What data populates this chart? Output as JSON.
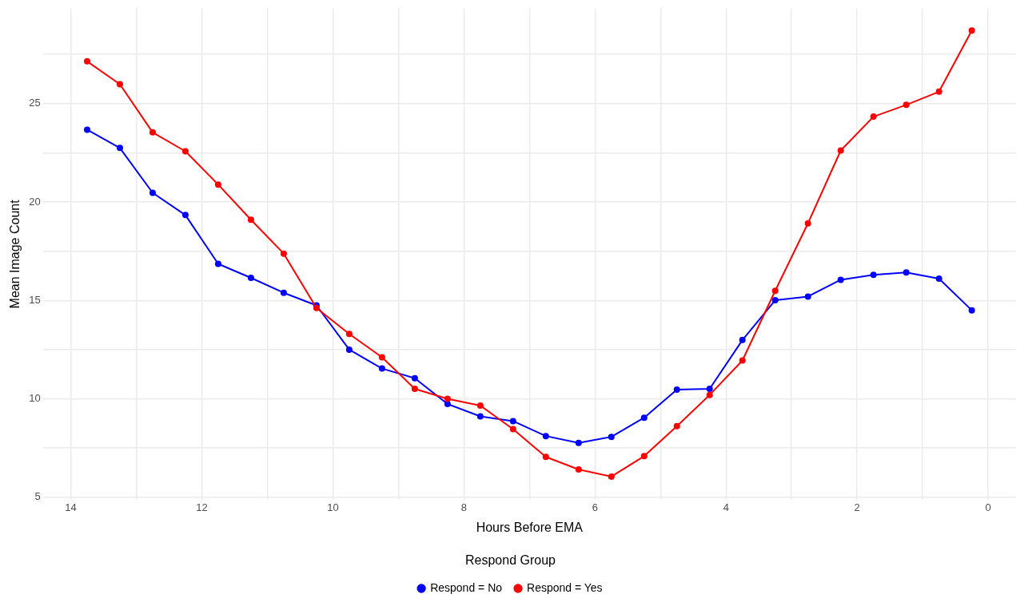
{
  "chart_data": {
    "type": "line",
    "xlabel": "Hours Before EMA",
    "ylabel": "Mean Image Count",
    "legend_title": "Respond Group",
    "x": [
      13.75,
      13.25,
      12.75,
      12.25,
      11.75,
      11.25,
      10.75,
      10.25,
      9.75,
      9.25,
      8.75,
      8.25,
      7.75,
      7.25,
      6.75,
      6.25,
      5.75,
      5.25,
      4.75,
      4.25,
      3.75,
      3.25,
      2.75,
      2.25,
      1.75,
      1.25,
      0.75,
      0.25
    ],
    "series": [
      {
        "name": "Respond = No",
        "color": "#0000ff",
        "values": [
          23.68,
          22.75,
          20.47,
          19.34,
          16.86,
          16.15,
          15.39,
          14.75,
          12.5,
          11.54,
          11.05,
          9.74,
          9.11,
          8.87,
          8.11,
          7.76,
          8.07,
          9.04,
          10.47,
          10.51,
          12.99,
          15.01,
          15.2,
          16.05,
          16.3,
          16.42,
          16.11,
          14.5
        ]
      },
      {
        "name": "Respond = Yes",
        "color": "#ff0000",
        "values": [
          27.15,
          25.99,
          23.54,
          22.58,
          20.89,
          19.1,
          17.38,
          14.62,
          13.3,
          12.11,
          10.51,
          10.0,
          9.66,
          8.46,
          7.05,
          6.41,
          6.05,
          7.09,
          8.61,
          10.2,
          11.95,
          15.49,
          18.92,
          22.62,
          24.34,
          24.94,
          25.61,
          28.72
        ]
      }
    ],
    "xlim": [
      14.425,
      -0.425
    ],
    "xticks": [
      14,
      {
        "value": 13,
        "label": null
      },
      12,
      {
        "value": 11,
        "label": null
      },
      10,
      {
        "value": 9,
        "label": null
      },
      8,
      {
        "value": 7,
        "label": null
      },
      6,
      {
        "value": 5,
        "label": null
      },
      4,
      {
        "value": 3,
        "label": null
      },
      2,
      {
        "value": 1,
        "label": null
      },
      0
    ],
    "ylim": [
      4.87,
      29.83
    ],
    "yticks": [
      5,
      {
        "value": 7.5,
        "label": null
      },
      10,
      {
        "value": 12.5,
        "label": null
      },
      15,
      {
        "value": 17.5,
        "label": null
      },
      20,
      {
        "value": 22.5,
        "label": null
      },
      25,
      {
        "value": 27.5,
        "label": null
      }
    ],
    "grid": true,
    "legend": "bottom",
    "marker": "circle",
    "line_style": "solid"
  }
}
